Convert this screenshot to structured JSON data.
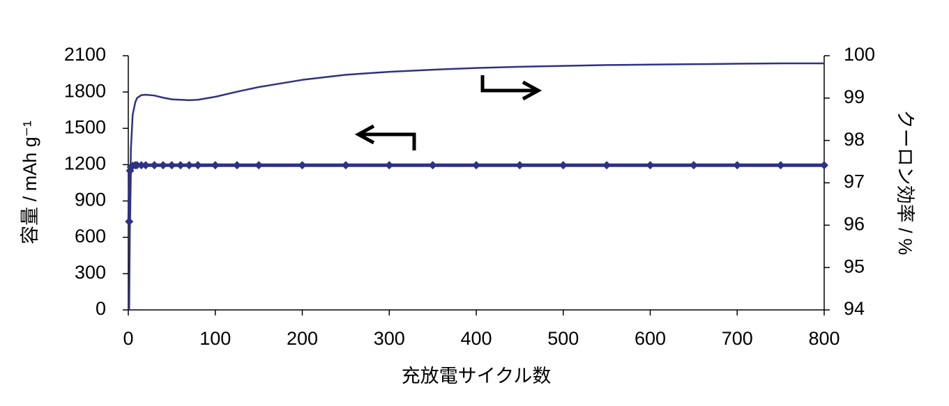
{
  "chart_data": {
    "type": "line",
    "x_label": "充放電サイクル数",
    "y_label": "容量 / mAh g⁻¹",
    "y2_label": "クーロン効率 / %",
    "x": [
      1,
      2,
      3,
      5,
      8,
      10,
      15,
      20,
      30,
      40,
      50,
      60,
      70,
      80,
      100,
      125,
      150,
      200,
      250,
      300,
      350,
      400,
      450,
      500,
      550,
      600,
      650,
      700,
      750,
      800
    ],
    "series": [
      {
        "name": "容量",
        "color": "#2e3184",
        "axis": "y",
        "markers": true,
        "values": [
          730,
          1150,
          1180,
          1190,
          1195,
          1195,
          1195,
          1195,
          1195,
          1195,
          1195,
          1195,
          1195,
          1195,
          1195,
          1195,
          1195,
          1195,
          1195,
          1195,
          1195,
          1195,
          1195,
          1195,
          1195,
          1195,
          1195,
          1195,
          1195,
          1195
        ]
      },
      {
        "name": "クーロン効率",
        "color": "#2e3184",
        "axis": "y2",
        "markers": false,
        "values": [
          94.0,
          96.5,
          97.8,
          98.6,
          98.9,
          99.0,
          99.07,
          99.08,
          99.06,
          99.01,
          98.97,
          98.96,
          98.95,
          98.96,
          99.03,
          99.15,
          99.26,
          99.43,
          99.55,
          99.62,
          99.67,
          99.71,
          99.74,
          99.76,
          99.78,
          99.79,
          99.8,
          99.81,
          99.82,
          99.82
        ]
      }
    ],
    "xlim": [
      0,
      800
    ],
    "xticks": [
      0,
      100,
      200,
      300,
      400,
      500,
      600,
      700,
      800
    ],
    "ylim": [
      0,
      2100
    ],
    "yticks": [
      0,
      300,
      600,
      900,
      1200,
      1500,
      1800,
      2100
    ],
    "y2lim": [
      94,
      100
    ],
    "y2ticks": [
      94,
      95,
      96,
      97,
      98,
      99,
      100
    ],
    "grid": false
  }
}
